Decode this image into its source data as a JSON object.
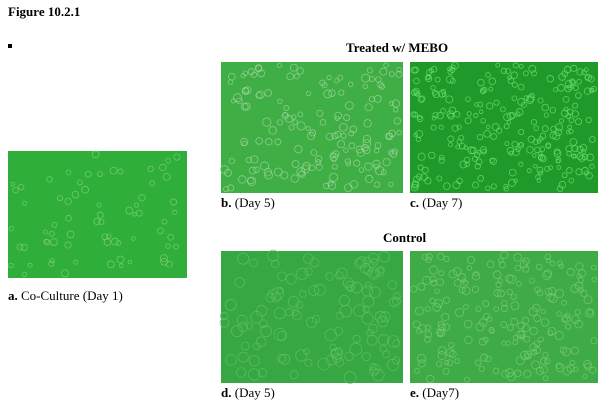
{
  "header": {
    "title": "Figure 10.2.1"
  },
  "groups": {
    "treated": "Treated w/ MEBO",
    "control": "Control"
  },
  "panels": [
    {
      "label": "a.",
      "caption": "Co-Culture (Day 1)"
    },
    {
      "label": "b.",
      "caption": "(Day 5)"
    },
    {
      "label": "c.",
      "caption": "(Day 7)"
    },
    {
      "label": "d.",
      "caption": "(Day 5)"
    },
    {
      "label": "e.",
      "caption": "(Day7)"
    }
  ]
}
